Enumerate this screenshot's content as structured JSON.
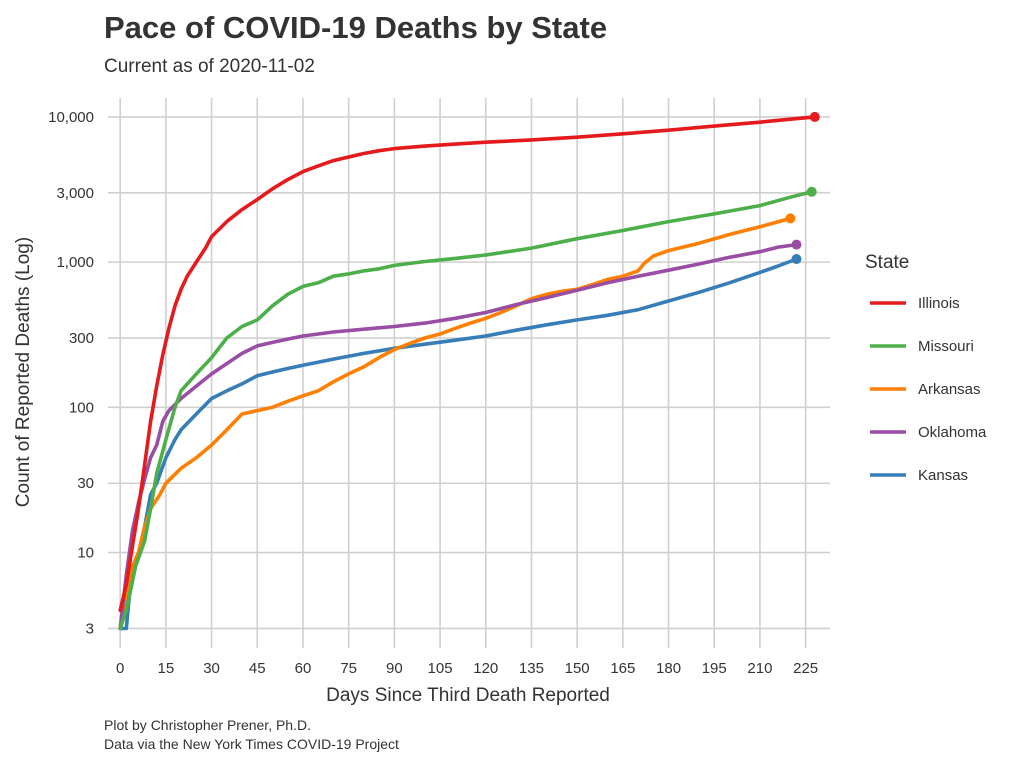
{
  "title": "Pace of COVID-19 Deaths by State",
  "subtitle": "Current as of 2020-11-02",
  "caption_line1": "Plot by Christopher Prener, Ph.D.",
  "caption_line2": "Data via the New York Times COVID-19 Project",
  "chart_data": {
    "type": "line",
    "xlabel": "Days Since Third Death Reported",
    "ylabel": "Count of Reported Deaths (Log)",
    "y_scale": "log10",
    "xlim": [
      -4,
      233
    ],
    "ylim": [
      2.2,
      13500
    ],
    "x_ticks": [
      0,
      15,
      30,
      45,
      60,
      75,
      90,
      105,
      120,
      135,
      150,
      165,
      180,
      195,
      210,
      225
    ],
    "y_ticks": [
      3,
      10,
      30,
      100,
      300,
      1000,
      3000,
      10000
    ],
    "y_tick_labels": [
      "3",
      "10",
      "30",
      "100",
      "300",
      "1,000",
      "3,000",
      "10,000"
    ],
    "grid": true,
    "legend_title": "State",
    "legend_position": "right",
    "series": [
      {
        "name": "Illinois",
        "color": "#e41a1c",
        "end_marker": true,
        "points": [
          [
            0,
            4
          ],
          [
            2,
            6
          ],
          [
            4,
            11
          ],
          [
            6,
            20
          ],
          [
            8,
            40
          ],
          [
            10,
            80
          ],
          [
            12,
            140
          ],
          [
            14,
            230
          ],
          [
            16,
            350
          ],
          [
            18,
            500
          ],
          [
            20,
            650
          ],
          [
            22,
            800
          ],
          [
            25,
            1000
          ],
          [
            28,
            1250
          ],
          [
            30,
            1500
          ],
          [
            35,
            1900
          ],
          [
            40,
            2300
          ],
          [
            45,
            2700
          ],
          [
            50,
            3200
          ],
          [
            55,
            3700
          ],
          [
            60,
            4200
          ],
          [
            65,
            4600
          ],
          [
            70,
            5000
          ],
          [
            75,
            5300
          ],
          [
            80,
            5600
          ],
          [
            85,
            5850
          ],
          [
            90,
            6050
          ],
          [
            100,
            6300
          ],
          [
            110,
            6500
          ],
          [
            120,
            6700
          ],
          [
            135,
            6950
          ],
          [
            150,
            7250
          ],
          [
            165,
            7650
          ],
          [
            180,
            8100
          ],
          [
            195,
            8650
          ],
          [
            210,
            9200
          ],
          [
            220,
            9650
          ],
          [
            228,
            10000
          ]
        ]
      },
      {
        "name": "Missouri",
        "color": "#4daf4a",
        "end_marker": true,
        "points": [
          [
            0,
            3
          ],
          [
            2,
            4
          ],
          [
            5,
            8
          ],
          [
            8,
            12
          ],
          [
            10,
            20
          ],
          [
            12,
            35
          ],
          [
            15,
            60
          ],
          [
            18,
            100
          ],
          [
            20,
            130
          ],
          [
            25,
            170
          ],
          [
            30,
            220
          ],
          [
            35,
            300
          ],
          [
            40,
            360
          ],
          [
            45,
            400
          ],
          [
            50,
            500
          ],
          [
            55,
            600
          ],
          [
            60,
            680
          ],
          [
            65,
            720
          ],
          [
            70,
            800
          ],
          [
            75,
            830
          ],
          [
            80,
            870
          ],
          [
            85,
            900
          ],
          [
            90,
            950
          ],
          [
            100,
            1010
          ],
          [
            110,
            1060
          ],
          [
            120,
            1120
          ],
          [
            135,
            1250
          ],
          [
            150,
            1450
          ],
          [
            165,
            1650
          ],
          [
            180,
            1900
          ],
          [
            195,
            2150
          ],
          [
            210,
            2450
          ],
          [
            220,
            2800
          ],
          [
            227,
            3050
          ]
        ]
      },
      {
        "name": "Arkansas",
        "color": "#ff7f00",
        "end_marker": true,
        "points": [
          [
            0,
            3
          ],
          [
            2,
            5
          ],
          [
            4,
            8
          ],
          [
            6,
            10
          ],
          [
            8,
            15
          ],
          [
            10,
            20
          ],
          [
            13,
            25
          ],
          [
            15,
            30
          ],
          [
            20,
            38
          ],
          [
            25,
            45
          ],
          [
            30,
            55
          ],
          [
            35,
            70
          ],
          [
            40,
            90
          ],
          [
            45,
            95
          ],
          [
            50,
            100
          ],
          [
            55,
            110
          ],
          [
            60,
            120
          ],
          [
            65,
            130
          ],
          [
            70,
            150
          ],
          [
            75,
            170
          ],
          [
            80,
            190
          ],
          [
            85,
            220
          ],
          [
            90,
            250
          ],
          [
            95,
            275
          ],
          [
            100,
            300
          ],
          [
            105,
            320
          ],
          [
            110,
            350
          ],
          [
            115,
            380
          ],
          [
            120,
            410
          ],
          [
            125,
            450
          ],
          [
            130,
            500
          ],
          [
            135,
            560
          ],
          [
            140,
            600
          ],
          [
            145,
            630
          ],
          [
            150,
            650
          ],
          [
            155,
            700
          ],
          [
            160,
            760
          ],
          [
            165,
            800
          ],
          [
            170,
            870
          ],
          [
            172,
            980
          ],
          [
            175,
            1100
          ],
          [
            180,
            1200
          ],
          [
            190,
            1350
          ],
          [
            200,
            1550
          ],
          [
            210,
            1750
          ],
          [
            220,
            2000
          ]
        ]
      },
      {
        "name": "Oklahoma",
        "color": "#984ea3",
        "end_marker": true,
        "points": [
          [
            0,
            3
          ],
          [
            2,
            7
          ],
          [
            4,
            14
          ],
          [
            6,
            22
          ],
          [
            8,
            32
          ],
          [
            10,
            45
          ],
          [
            12,
            55
          ],
          [
            14,
            80
          ],
          [
            16,
            95
          ],
          [
            20,
            115
          ],
          [
            25,
            140
          ],
          [
            30,
            170
          ],
          [
            35,
            200
          ],
          [
            40,
            235
          ],
          [
            45,
            265
          ],
          [
            50,
            280
          ],
          [
            55,
            295
          ],
          [
            60,
            310
          ],
          [
            70,
            330
          ],
          [
            80,
            345
          ],
          [
            90,
            360
          ],
          [
            100,
            380
          ],
          [
            110,
            410
          ],
          [
            120,
            450
          ],
          [
            130,
            510
          ],
          [
            140,
            570
          ],
          [
            150,
            640
          ],
          [
            160,
            720
          ],
          [
            170,
            800
          ],
          [
            180,
            880
          ],
          [
            190,
            970
          ],
          [
            200,
            1080
          ],
          [
            210,
            1180
          ],
          [
            216,
            1270
          ],
          [
            222,
            1320
          ]
        ]
      },
      {
        "name": "Kansas",
        "color": "#377eb8",
        "end_marker": true,
        "points": [
          [
            0,
            3
          ],
          [
            2,
            3
          ],
          [
            3,
            5
          ],
          [
            5,
            8
          ],
          [
            8,
            15
          ],
          [
            10,
            25
          ],
          [
            12,
            30
          ],
          [
            15,
            45
          ],
          [
            18,
            60
          ],
          [
            20,
            70
          ],
          [
            25,
            90
          ],
          [
            30,
            115
          ],
          [
            35,
            130
          ],
          [
            40,
            145
          ],
          [
            45,
            165
          ],
          [
            50,
            175
          ],
          [
            55,
            185
          ],
          [
            60,
            195
          ],
          [
            70,
            215
          ],
          [
            80,
            235
          ],
          [
            90,
            255
          ],
          [
            100,
            272
          ],
          [
            110,
            290
          ],
          [
            120,
            310
          ],
          [
            130,
            340
          ],
          [
            140,
            370
          ],
          [
            150,
            400
          ],
          [
            160,
            430
          ],
          [
            170,
            470
          ],
          [
            180,
            540
          ],
          [
            190,
            620
          ],
          [
            200,
            720
          ],
          [
            210,
            850
          ],
          [
            216,
            940
          ],
          [
            222,
            1050
          ]
        ]
      }
    ]
  }
}
